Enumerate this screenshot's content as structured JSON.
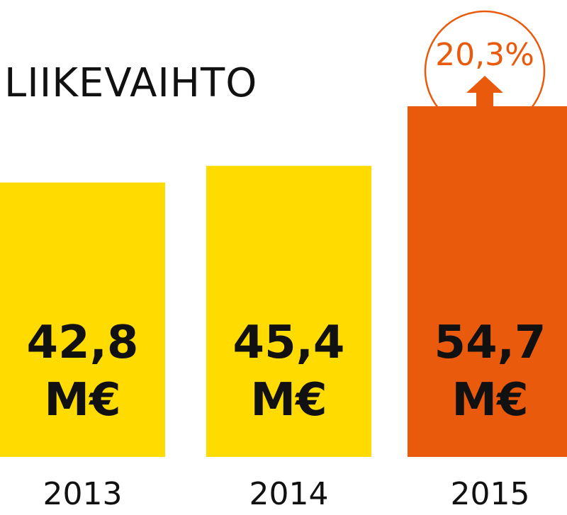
{
  "chart_data": {
    "type": "bar",
    "title": "LIIKEVAIHTO",
    "categories": [
      "2013",
      "2014",
      "2015"
    ],
    "values": [
      42.8,
      45.4,
      54.7
    ],
    "value_labels": [
      {
        "number": "42,8",
        "unit": "M€"
      },
      {
        "number": "45,4",
        "unit": "M€"
      },
      {
        "number": "54,7",
        "unit": "M€"
      }
    ],
    "colors": [
      "#FFDB00",
      "#FFDB00",
      "#E95A0C"
    ],
    "ylim": [
      0,
      60
    ],
    "grid": false,
    "annotation": {
      "text": "20,3%",
      "color": "#E95A0C",
      "arrow": "up-arrow-icon"
    }
  }
}
